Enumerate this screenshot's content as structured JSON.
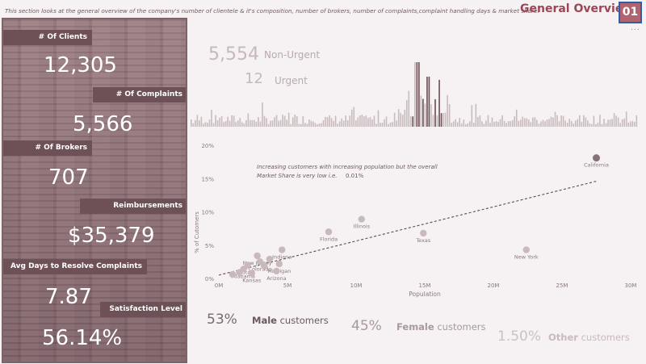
{
  "header": {
    "description": "This section looks at the general overview of the company's number of clientele  & it's composition, number of brokers, number of complaints,complaint handling days & market share.",
    "title": "General Overview",
    "page_number": "01",
    "more": "..."
  },
  "kpis": [
    {
      "label": "# Of Clients",
      "value": "12,305"
    },
    {
      "label": "# Of Complaints",
      "value": "5,566"
    },
    {
      "label": "# Of Brokers",
      "value": "707"
    },
    {
      "label": "Reimbursements",
      "value": "$35,379"
    },
    {
      "label": "Avg Days  to Resolve Complaints",
      "value": "7.87"
    },
    {
      "label": "Satisfaction Level",
      "value": "56.14%"
    }
  ],
  "urgency": {
    "non_urgent_value": "5,554",
    "non_urgent_label": "Non-Urgent",
    "urgent_value": "12",
    "urgent_label": "Urgent"
  },
  "chart_data": {
    "type": "scatter",
    "annotation_line1": "Increasing customers with increasing population but the overall",
    "annotation_line2": "Market Share is very low i.e.",
    "market_share": "0.01%",
    "xlabel": "Population",
    "ylabel": "% of Cutomers",
    "x_ticks": [
      "0M",
      "5M",
      "10M",
      "15M",
      "20M",
      "25M",
      "30M"
    ],
    "y_ticks": [
      "0%",
      "5%",
      "10%",
      "15%",
      "20%"
    ],
    "xlim": [
      0,
      30
    ],
    "ylim": [
      0,
      20
    ],
    "trendline": {
      "x0": 0,
      "y0": 0.5,
      "x1": 27.5,
      "y1": 14.6
    },
    "points": [
      {
        "label": "California",
        "x": 27.5,
        "y": 18.1,
        "highlight": true
      },
      {
        "label": "Texas",
        "x": 14.9,
        "y": 6.8
      },
      {
        "label": "New York",
        "x": 22.4,
        "y": 4.3
      },
      {
        "label": "Illinois",
        "x": 10.4,
        "y": 8.9
      },
      {
        "label": "Florida",
        "x": 8.0,
        "y": 7.0
      },
      {
        "label": "Indiana",
        "x": 4.6,
        "y": 4.3
      },
      {
        "label": "Michigan",
        "x": 4.4,
        "y": 2.2
      },
      {
        "label": "Arizona",
        "x": 4.2,
        "y": 1.1
      },
      {
        "label": "New Jersey",
        "x": 2.8,
        "y": 3.4
      },
      {
        "label": "Colorado",
        "x": 3.0,
        "y": 2.5
      },
      {
        "label": "Utah",
        "x": 2.1,
        "y": 2.0
      },
      {
        "label": "Alabama",
        "x": 1.8,
        "y": 1.4
      },
      {
        "label": "Kansas",
        "x": 2.4,
        "y": 0.8
      },
      {
        "label": "",
        "x": 1.5,
        "y": 0.9
      },
      {
        "label": "",
        "x": 3.3,
        "y": 1.9
      },
      {
        "label": "",
        "x": 1.0,
        "y": 0.6
      },
      {
        "label": "",
        "x": 3.7,
        "y": 2.9
      }
    ]
  },
  "gender": {
    "male_pct": "53%",
    "male_bold": "Male",
    "male_rest": " customers",
    "female_pct": "45%",
    "female_bold": "Female",
    "female_rest": " customers",
    "other_pct": "1.50%",
    "other_bold": "Other",
    "other_rest": " customers"
  },
  "colors": {
    "accent": "#9a4656",
    "bar": "#c9bcbf",
    "bar_dark": "#6a5055",
    "point": "#c9b9bc",
    "point_highlight": "#857377"
  }
}
